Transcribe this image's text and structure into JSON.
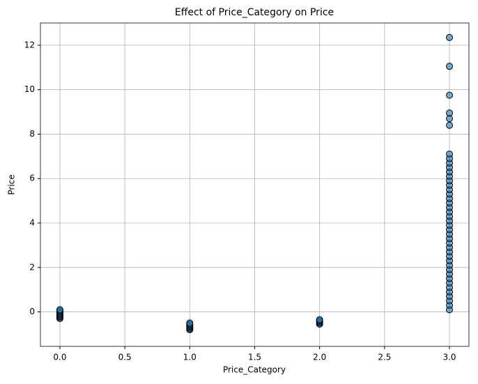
{
  "chart_data": {
    "type": "scatter",
    "title": "Effect of Price_Category on Price",
    "x_label": "Price_Category",
    "y_label": "Price",
    "x": [
      0,
      0,
      0,
      0,
      0,
      0,
      0,
      0,
      0,
      1,
      1,
      1,
      1,
      1,
      1,
      1,
      2,
      2,
      2,
      2,
      2,
      3,
      3,
      3,
      3,
      3,
      3,
      3,
      3,
      3,
      3,
      3,
      3,
      3,
      3,
      3,
      3,
      3,
      3,
      3,
      3,
      3,
      3,
      3,
      3,
      3,
      3,
      3,
      3,
      3,
      3,
      3,
      3,
      3,
      3,
      3,
      3,
      3,
      3,
      3,
      3,
      3,
      3
    ],
    "values": [
      -0.3,
      -0.25,
      -0.2,
      -0.15,
      -0.1,
      -0.05,
      0,
      0.05,
      0.1,
      -0.8,
      -0.75,
      -0.7,
      -0.65,
      -0.6,
      -0.55,
      -0.5,
      -0.55,
      -0.5,
      -0.45,
      -0.4,
      -0.35,
      0.1,
      0.3,
      0.5,
      0.7,
      0.9,
      1.1,
      1.3,
      1.5,
      1.7,
      1.9,
      2.1,
      2.3,
      2.5,
      2.7,
      2.9,
      3.1,
      3.3,
      3.5,
      3.7,
      3.9,
      4.1,
      4.3,
      4.5,
      4.7,
      4.9,
      5.1,
      5.3,
      5.5,
      5.7,
      5.9,
      6.1,
      6.3,
      6.5,
      6.7,
      6.9,
      7.1,
      8.4,
      8.7,
      8.95,
      9.75,
      11.05,
      12.35
    ],
    "color": "#1f77b4",
    "edge_color": "#000000",
    "alpha": 0.6,
    "xlim": [
      -0.15,
      3.15
    ],
    "ylim": [
      -1.55,
      13.0
    ],
    "xticks": [
      {
        "value": 0,
        "label": "0.0"
      },
      {
        "value": 0.5,
        "label": "0.5"
      },
      {
        "value": 1,
        "label": "1.0"
      },
      {
        "value": 1.5,
        "label": "1.5"
      },
      {
        "value": 2,
        "label": "2.0"
      },
      {
        "value": 2.5,
        "label": "2.5"
      },
      {
        "value": 3,
        "label": "3.0"
      }
    ],
    "yticks": [
      0,
      2,
      4,
      6,
      8,
      10,
      12
    ],
    "grid": true
  }
}
